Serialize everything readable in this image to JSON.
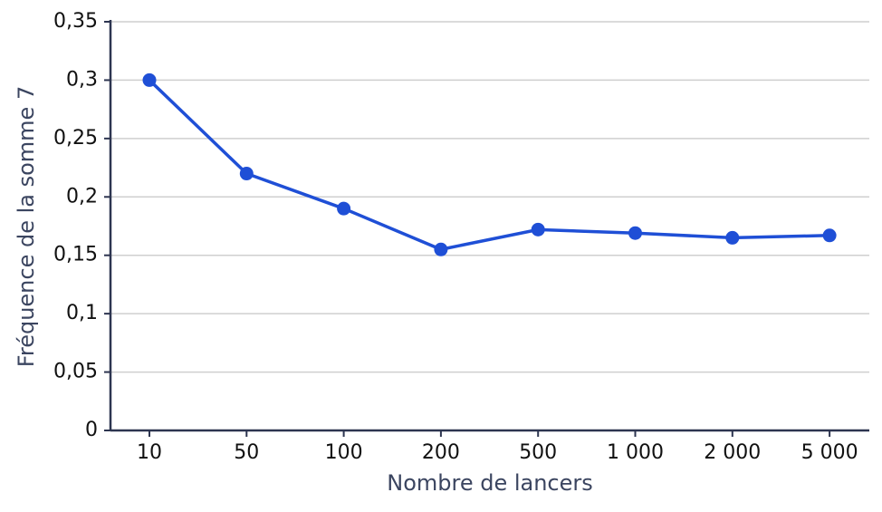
{
  "chart_data": {
    "type": "line",
    "x_label": "Nombre de lancers",
    "y_label": "Fréquence de la somme 7",
    "categories": [
      "10",
      "50",
      "100",
      "200",
      "500",
      "1 000",
      "2 000",
      "5 000"
    ],
    "series": [
      {
        "color": "#1f4fd6",
        "values": [
          0.3,
          0.22,
          0.19,
          0.155,
          0.172,
          0.169,
          0.165,
          0.167
        ]
      }
    ],
    "ylim": [
      0,
      0.35
    ],
    "yticks": [
      0,
      {
        "value": 0.05,
        "label": "0,05"
      },
      {
        "value": 0.1,
        "label": "0,1"
      },
      {
        "value": 0.15,
        "label": "0,15"
      },
      {
        "value": 0.2,
        "label": "0,2"
      },
      {
        "value": 0.25,
        "label": "0,25"
      },
      {
        "value": 0.3,
        "label": "0,3"
      },
      {
        "value": 0.35,
        "label": "0,35"
      }
    ],
    "grid": true
  }
}
